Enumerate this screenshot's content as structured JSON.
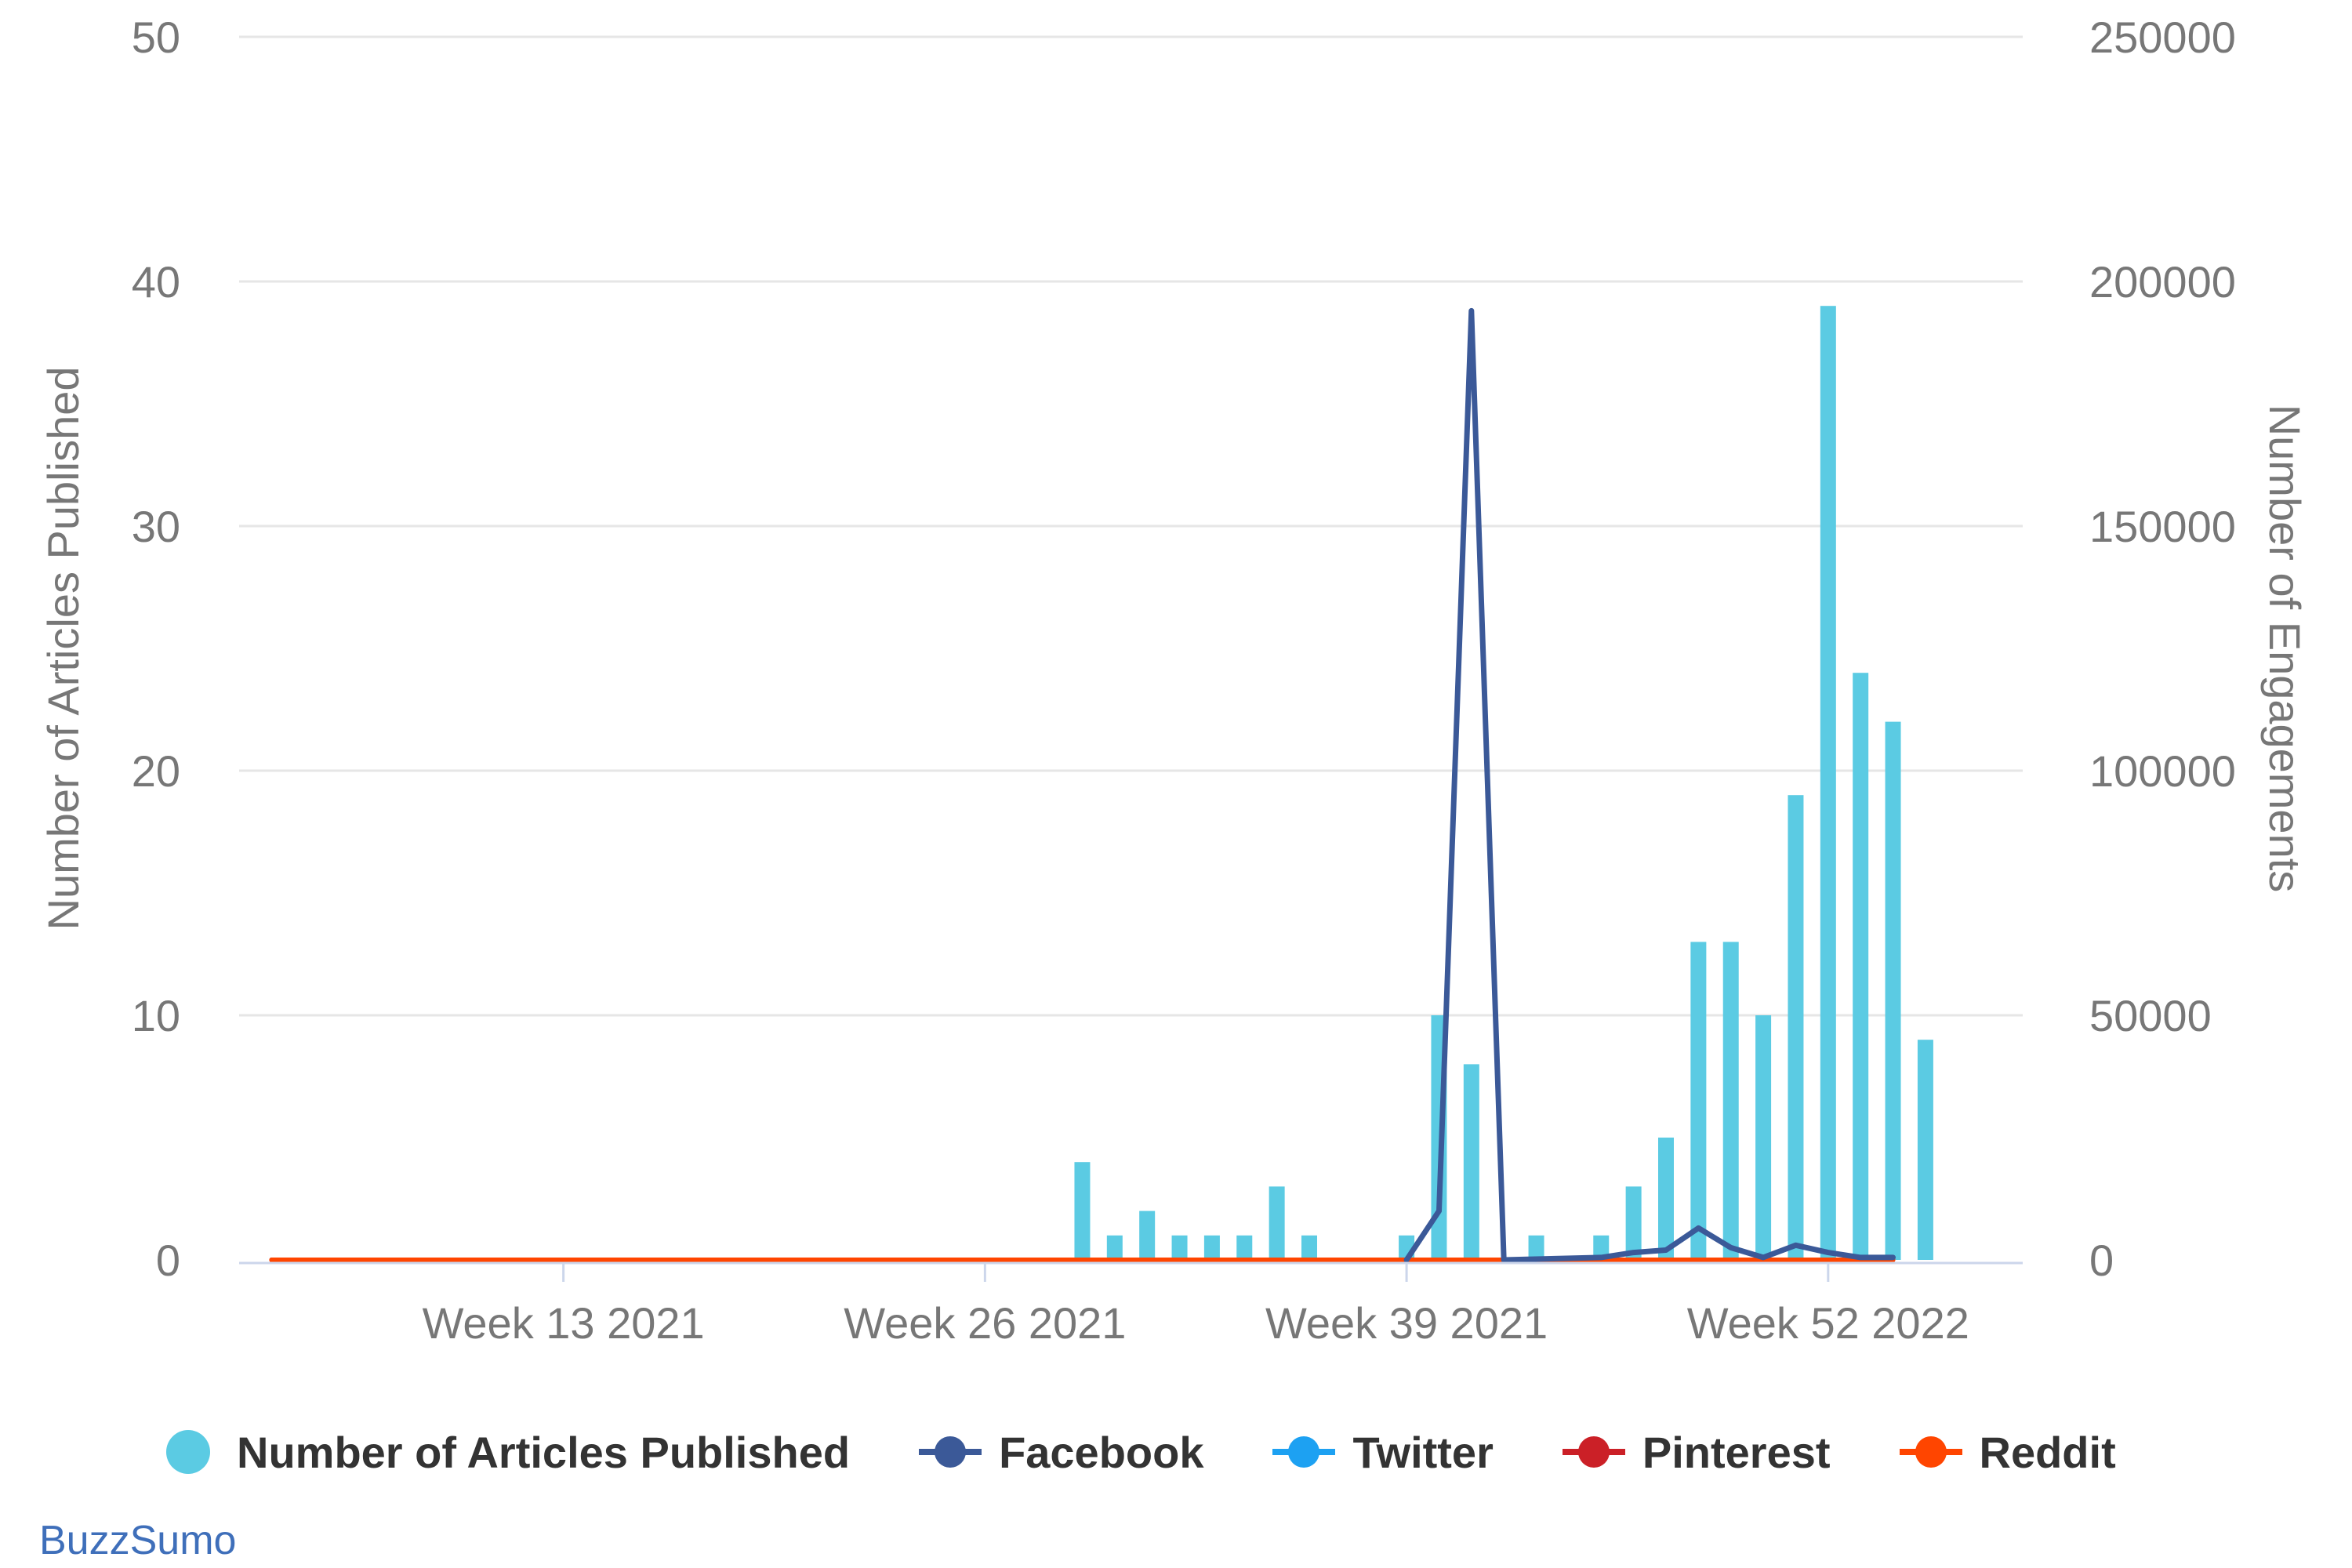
{
  "colors": {
    "articles": "#5bcbe3",
    "facebook": "#3b5998",
    "twitter": "#1da1f2",
    "pinterest": "#cb2027",
    "reddit": "#ff4500",
    "grid": "#e6e6e6",
    "axis_text": "#777777",
    "axis_line": "#ccd6eb",
    "brand": "#3f6fba"
  },
  "brand": {
    "label": "BuzzSumo"
  },
  "chart_data": {
    "type": "bar",
    "combo": "bar + line (dual axis)",
    "xlabel": "",
    "ylabel_left": "Number of Articles Published",
    "ylabel_right": "Number of Engagements",
    "ylim_left": [
      0,
      50
    ],
    "ylim_right": [
      0,
      250000
    ],
    "yticks_left": [
      0,
      10,
      20,
      30,
      40,
      50
    ],
    "yticks_right": [
      0,
      50000,
      100000,
      150000,
      200000,
      250000
    ],
    "week_range": [
      3,
      58
    ],
    "xtick_labels": [
      {
        "week": 13,
        "label": "Week 13 2021"
      },
      {
        "week": 26,
        "label": "Week 26 2021"
      },
      {
        "week": 39,
        "label": "Week 39 2021"
      },
      {
        "week": 52,
        "label": "Week 52 2022"
      }
    ],
    "grid": true,
    "legend_position": "bottom",
    "series": [
      {
        "name": "Number of Articles Published",
        "type": "bar",
        "axis": "left",
        "points": [
          {
            "week": 29,
            "value": 4
          },
          {
            "week": 30,
            "value": 1
          },
          {
            "week": 31,
            "value": 2
          },
          {
            "week": 32,
            "value": 1
          },
          {
            "week": 33,
            "value": 1
          },
          {
            "week": 34,
            "value": 1
          },
          {
            "week": 35,
            "value": 3
          },
          {
            "week": 36,
            "value": 1
          },
          {
            "week": 39,
            "value": 1
          },
          {
            "week": 40,
            "value": 10
          },
          {
            "week": 41,
            "value": 8
          },
          {
            "week": 43,
            "value": 1
          },
          {
            "week": 45,
            "value": 1
          },
          {
            "week": 46,
            "value": 3
          },
          {
            "week": 47,
            "value": 5
          },
          {
            "week": 48,
            "value": 13
          },
          {
            "week": 49,
            "value": 13
          },
          {
            "week": 50,
            "value": 10
          },
          {
            "week": 51,
            "value": 19
          },
          {
            "week": 52,
            "value": 39
          },
          {
            "week": 53,
            "value": 24
          },
          {
            "week": 54,
            "value": 22
          },
          {
            "week": 55,
            "value": 9
          }
        ]
      },
      {
        "name": "Facebook",
        "type": "line",
        "axis": "right",
        "points": [
          {
            "week": 39,
            "value": 0
          },
          {
            "week": 40,
            "value": 10000
          },
          {
            "week": 41,
            "value": 194000
          },
          {
            "week": 42,
            "value": 0
          },
          {
            "week": 45,
            "value": 500
          },
          {
            "week": 46,
            "value": 1500
          },
          {
            "week": 47,
            "value": 2000
          },
          {
            "week": 48,
            "value": 6500
          },
          {
            "week": 49,
            "value": 2500
          },
          {
            "week": 50,
            "value": 500
          },
          {
            "week": 51,
            "value": 3000
          },
          {
            "week": 52,
            "value": 1500
          },
          {
            "week": 53,
            "value": 500
          },
          {
            "week": 54,
            "value": 500
          }
        ]
      },
      {
        "name": "Twitter",
        "type": "line",
        "axis": "right",
        "points": [
          {
            "week": 4,
            "value": 0
          },
          {
            "week": 54,
            "value": 0
          }
        ]
      },
      {
        "name": "Pinterest",
        "type": "line",
        "axis": "right",
        "points": [
          {
            "week": 4,
            "value": 0
          },
          {
            "week": 54,
            "value": 0
          }
        ]
      },
      {
        "name": "Reddit",
        "type": "line",
        "axis": "right",
        "points": [
          {
            "week": 4,
            "value": 0
          },
          {
            "week": 54,
            "value": 0
          }
        ]
      }
    ]
  },
  "legend": [
    {
      "label": "Number of Articles Published",
      "series": "articles",
      "shape": "dot"
    },
    {
      "label": "Facebook",
      "series": "facebook",
      "shape": "line-dot"
    },
    {
      "label": "Twitter",
      "series": "twitter",
      "shape": "line-dot"
    },
    {
      "label": "Pinterest",
      "series": "pinterest",
      "shape": "line-dot"
    },
    {
      "label": "Reddit",
      "series": "reddit",
      "shape": "line-dot"
    }
  ]
}
